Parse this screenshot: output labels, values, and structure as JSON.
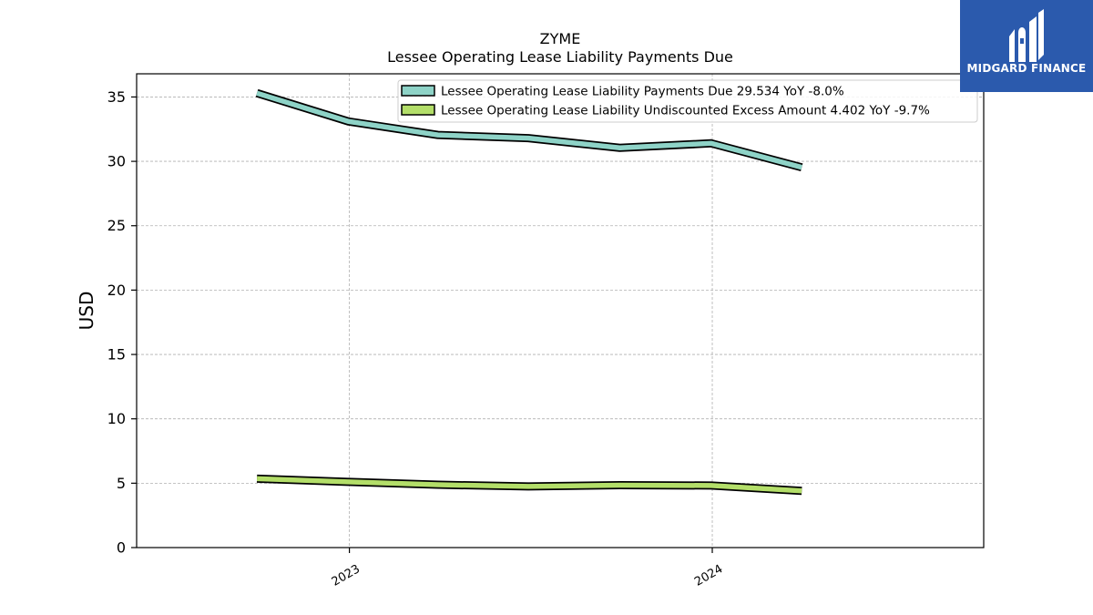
{
  "brand": {
    "name": "MIDGARD FINANCE",
    "color": "#2b5aad"
  },
  "chart_data": {
    "type": "line",
    "title": "ZYME",
    "subtitle": "Lessee Operating Lease Liability Payments Due",
    "xlabel": "",
    "ylabel": "USD",
    "ylim": [
      0,
      36.8
    ],
    "yticks": [
      0,
      5,
      10,
      15,
      20,
      25,
      30,
      35
    ],
    "xticks": [
      {
        "label": "2023",
        "x": "2023-01-01"
      },
      {
        "label": "2024",
        "x": "2024-01-01"
      }
    ],
    "xlim": [
      "2022-06-01",
      "2024-09-30"
    ],
    "x": [
      "2022-09-30",
      "2022-12-31",
      "2023-03-31",
      "2023-06-30",
      "2023-09-30",
      "2023-12-31",
      "2024-03-31"
    ],
    "grid": true,
    "legend_position": "top-right",
    "series": [
      {
        "name": "Lessee Operating Lease Liability Payments Due",
        "legend_label": "Lessee Operating Lease Liability Payments Due  29.534 YoY -8.0%",
        "color": "#8ed3c7",
        "values": [
          35.3,
          33.1,
          32.05,
          31.8,
          31.05,
          31.4,
          29.534
        ]
      },
      {
        "name": "Lessee Operating Lease Liability Undiscounted Excess Amount",
        "legend_label": "Lessee Operating Lease Liability Undiscounted Excess Amount  4.402 YoY -9.7%",
        "color": "#b3de69",
        "values": [
          5.35,
          5.1,
          4.88,
          4.75,
          4.85,
          4.82,
          4.402
        ]
      }
    ]
  }
}
